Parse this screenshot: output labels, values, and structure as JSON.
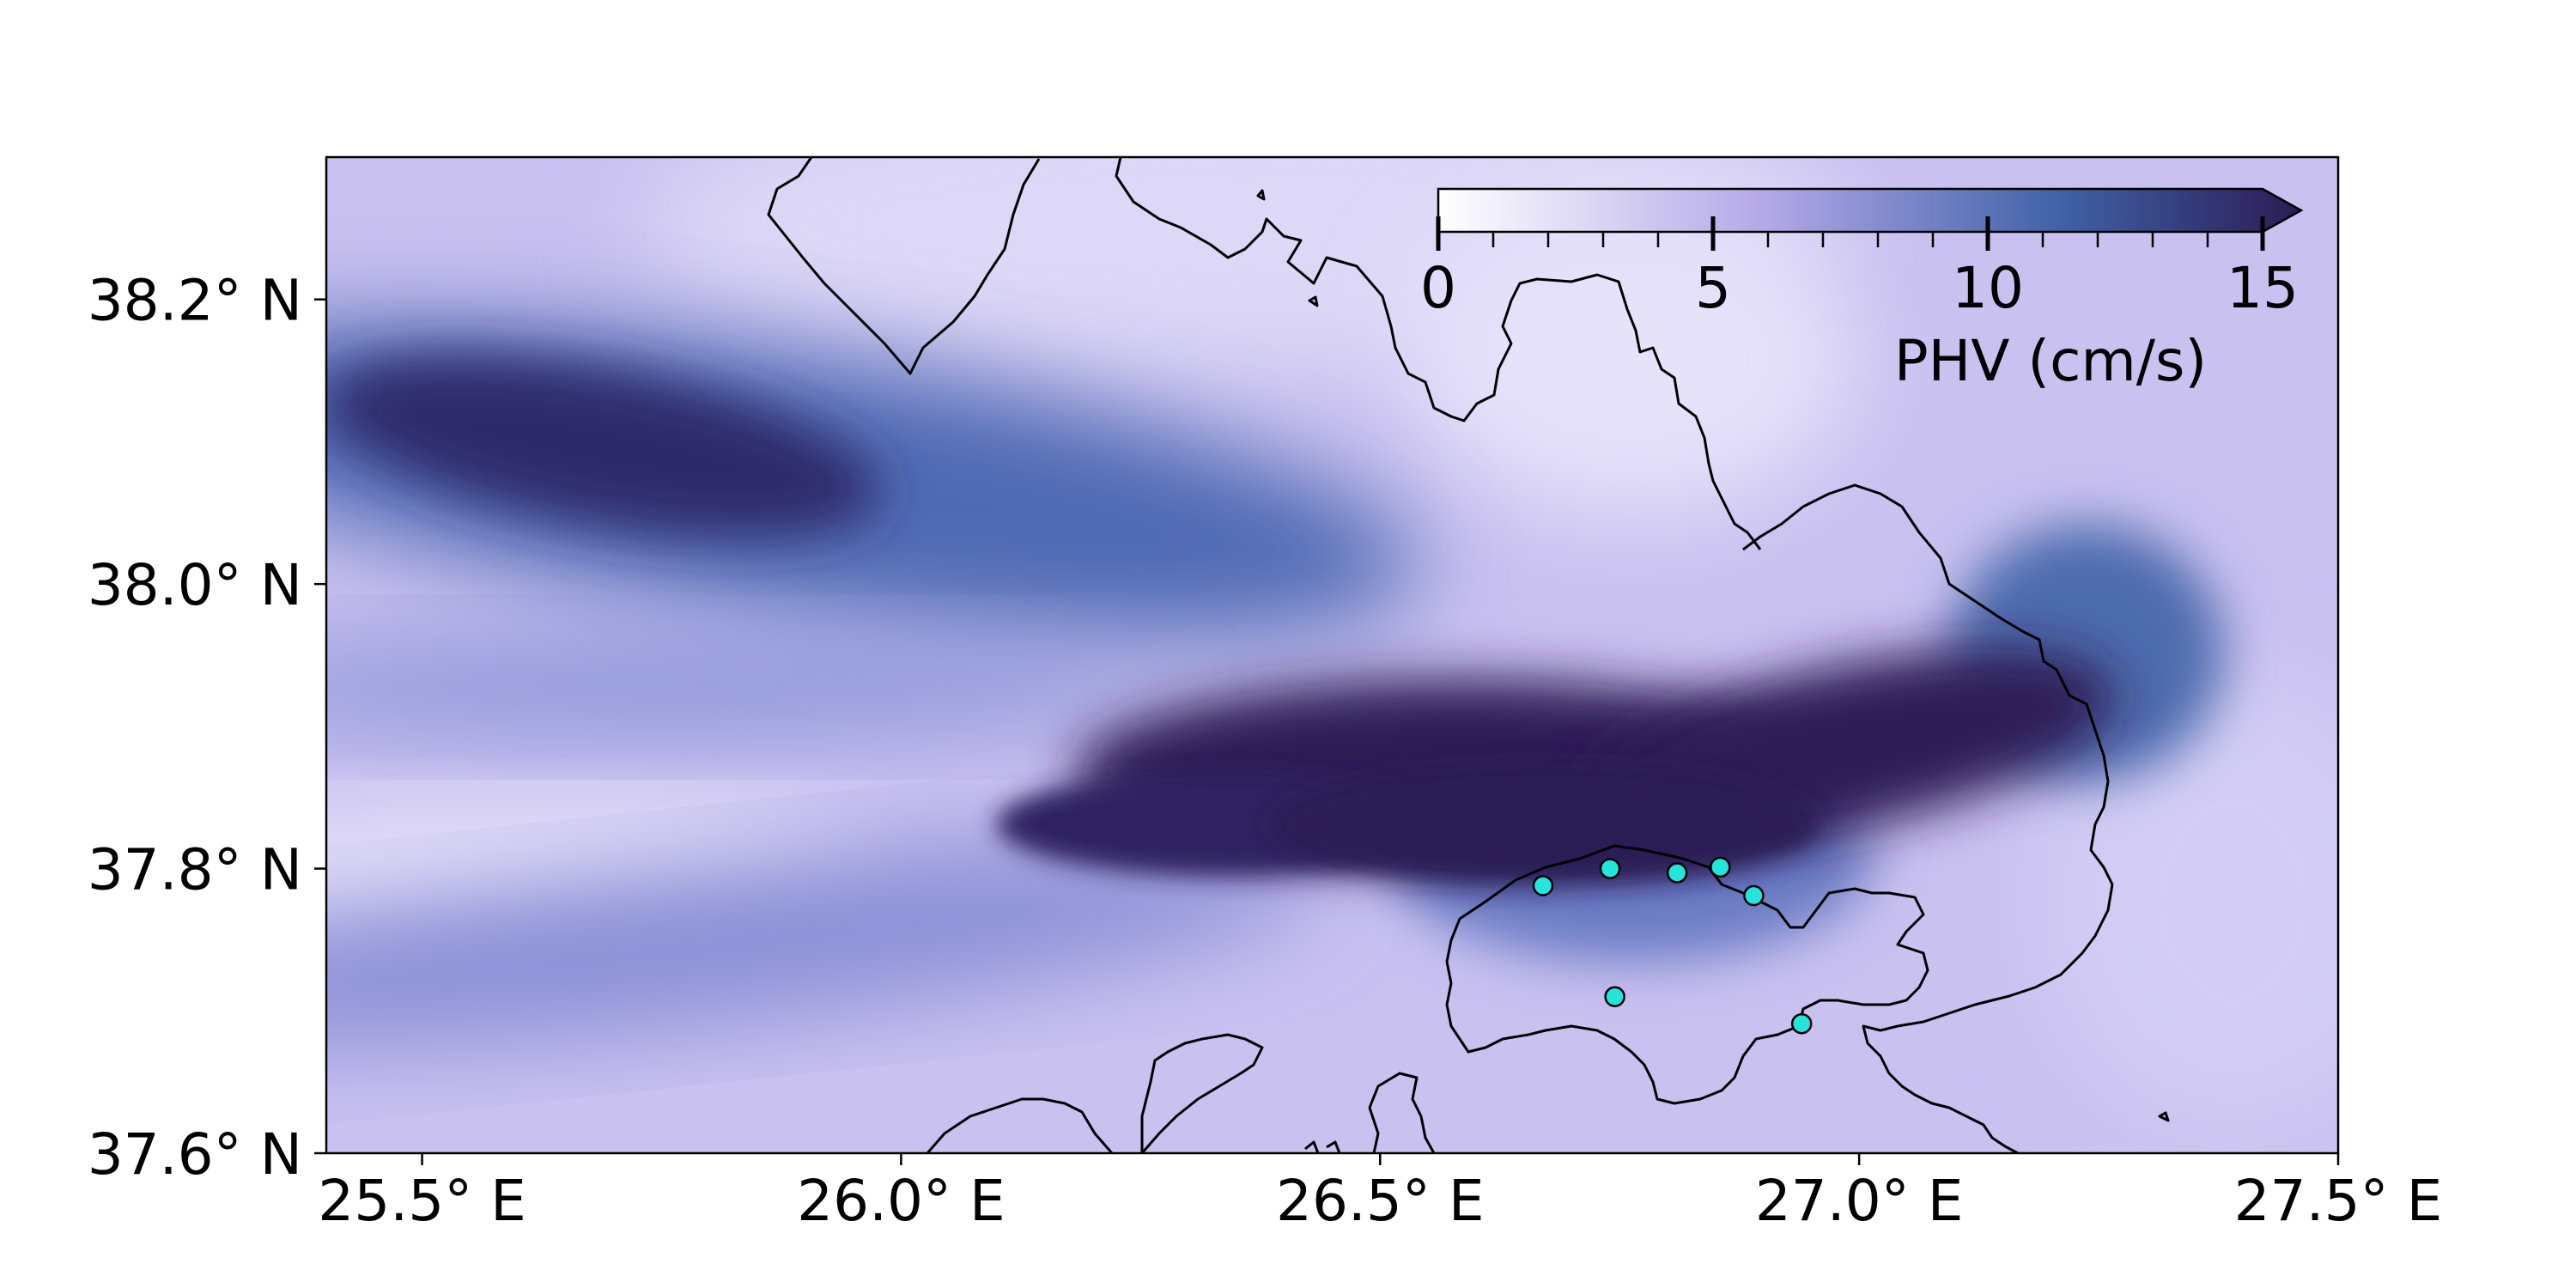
{
  "map": {
    "lon_range": [
      25.4,
      27.5
    ],
    "lat_range": [
      37.6,
      38.3
    ],
    "x_ticks": [
      {
        "value": 25.5,
        "label": "25.5° E"
      },
      {
        "value": 26.0,
        "label": "26.0° E"
      },
      {
        "value": 26.5,
        "label": "26.5° E"
      },
      {
        "value": 27.0,
        "label": "27.0° E"
      },
      {
        "value": 27.5,
        "label": "27.5° E"
      }
    ],
    "y_ticks": [
      {
        "value": 38.2,
        "label": "38.2° N"
      },
      {
        "value": 38.0,
        "label": "38.0° N"
      },
      {
        "value": 37.8,
        "label": "37.8° N"
      },
      {
        "value": 37.6,
        "label": "37.6° N"
      }
    ],
    "stations_color": "#22e6dc",
    "stations": [
      {
        "lon": 26.67,
        "lat": 37.788
      },
      {
        "lon": 26.74,
        "lat": 37.8
      },
      {
        "lon": 26.81,
        "lat": 37.797
      },
      {
        "lon": 26.855,
        "lat": 37.801
      },
      {
        "lon": 26.89,
        "lat": 37.781
      },
      {
        "lon": 26.745,
        "lat": 37.71
      },
      {
        "lon": 26.94,
        "lat": 37.691
      }
    ],
    "colormap": [
      "#ffffff",
      "#b3a8e8",
      "#3f62a6",
      "#2c1b55"
    ]
  },
  "colorbar": {
    "label": "PHV (cm/s)",
    "range": [
      0,
      15
    ],
    "extend": "max",
    "major_ticks": [
      {
        "value": 0,
        "label": "0"
      },
      {
        "value": 5,
        "label": "5"
      },
      {
        "value": 10,
        "label": "10"
      },
      {
        "value": 15,
        "label": "15"
      }
    ],
    "minor_step": 1
  }
}
